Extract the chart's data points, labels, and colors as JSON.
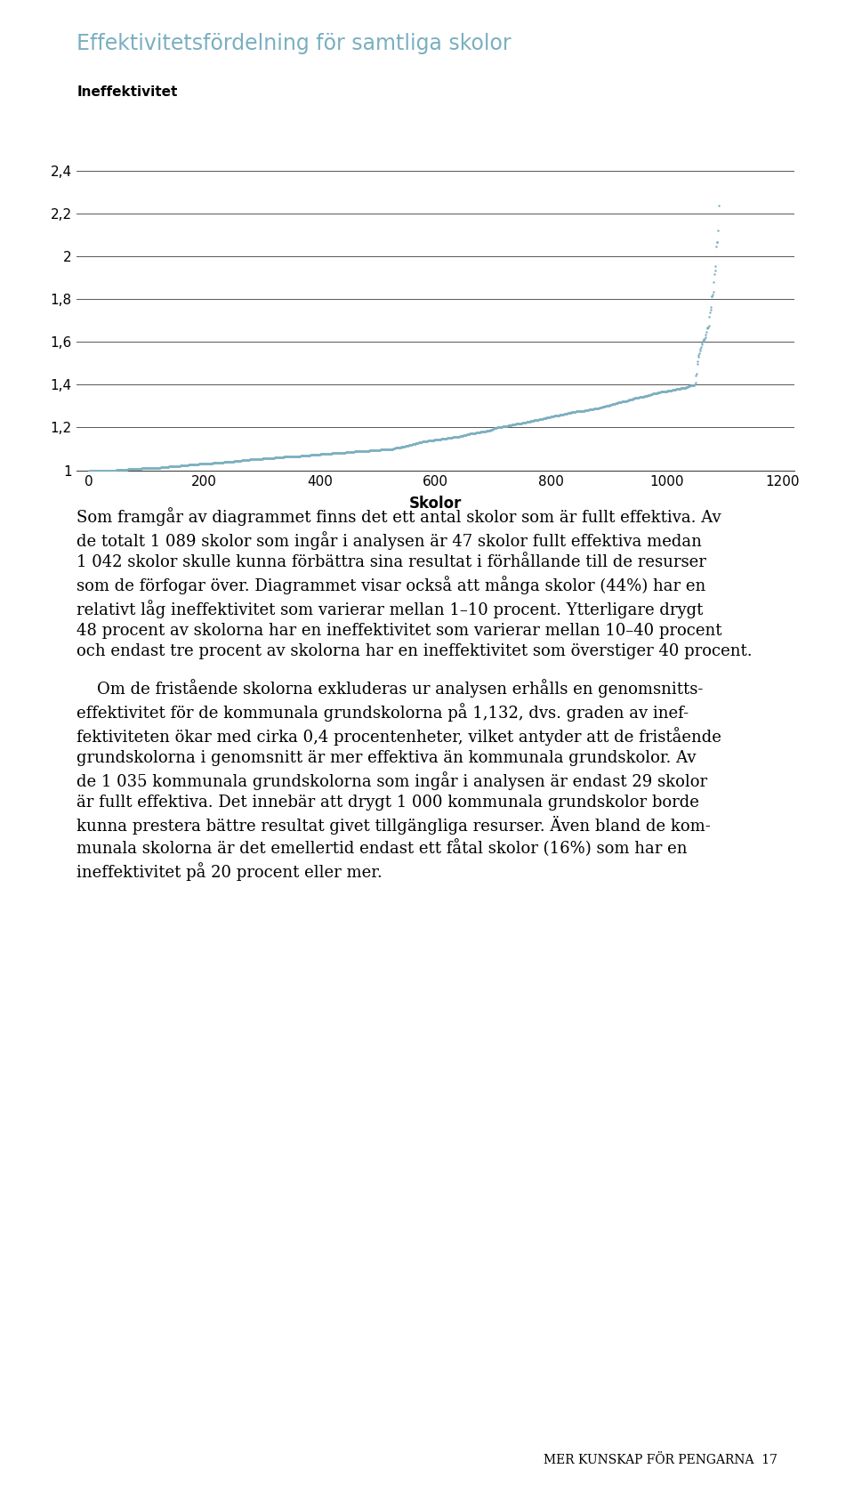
{
  "title": "Effektivitetsfördelning för samtliga skolor",
  "ylabel": "Ineffektivitet",
  "xlabel": "Skolor",
  "n_schools": 1089,
  "n_efficient": 47,
  "ylim": [
    1.0,
    2.5
  ],
  "xlim": [
    -20,
    1220
  ],
  "yticks": [
    1.0,
    1.2,
    1.4,
    1.6,
    1.8,
    2.0,
    2.2,
    2.4
  ],
  "xticks": [
    0,
    200,
    400,
    600,
    800,
    1000,
    1200
  ],
  "dot_color": "#7AAFC0",
  "dot_size": 3,
  "title_color": "#7AAFC0",
  "grid_color": "#555555",
  "para1_lines": [
    "Som framgår av diagrammet finns det ett antal skolor som är fullt effektiva. Av",
    "de totalt 1 089 skolor som ingår i analysen är 47 skolor fullt effektiva medan",
    "1 042 skolor skulle kunna förbättra sina resultat i förhållande till de resurser",
    "som de förfogar över. Diagrammet visar också att många skolor (44%) har en",
    "relativt låg ineffektivitet som varierar mellan 1–10 procent. Ytterligare drygt",
    "48 procent av skolorna har en ineffektivitet som varierar mellan 10–40 procent",
    "och endast tre procent av skolorna har en ineffektivitet som överstiger 40 procent."
  ],
  "para2_lines": [
    "    Om de fristående skolorna exkluderas ur analysen erhålls en genomsnitts-",
    "effektivitet för de kommunala grundskolorna på 1,132, dvs. graden av inef-",
    "fektiviteten ökar med cirka 0,4 procentenheter, vilket antyder att de fristående",
    "grundskolorna i genomsnitt är mer effektiva än kommunala grundskolor. Av",
    "de 1 035 kommunala grundskolorna som ingår i analysen är endast 29 skolor",
    "är fullt effektiva. Det innebär att drygt 1 000 kommunala grundskolor borde",
    "kunna prestera bättre resultat givet tillgängliga resurser. Även bland de kom-",
    "munala skolorna är det emellertid endast ett fåtal skolor (16%) som har en",
    "ineffektivitet på 20 procent eller mer."
  ],
  "footer": "MER KUNSKAP FÖR PENGARNA  17",
  "title_fontsize": 17,
  "ylabel_fontsize": 11,
  "xlabel_fontsize": 12,
  "tick_fontsize": 11,
  "text_fontsize": 13.0,
  "footer_fontsize": 10
}
